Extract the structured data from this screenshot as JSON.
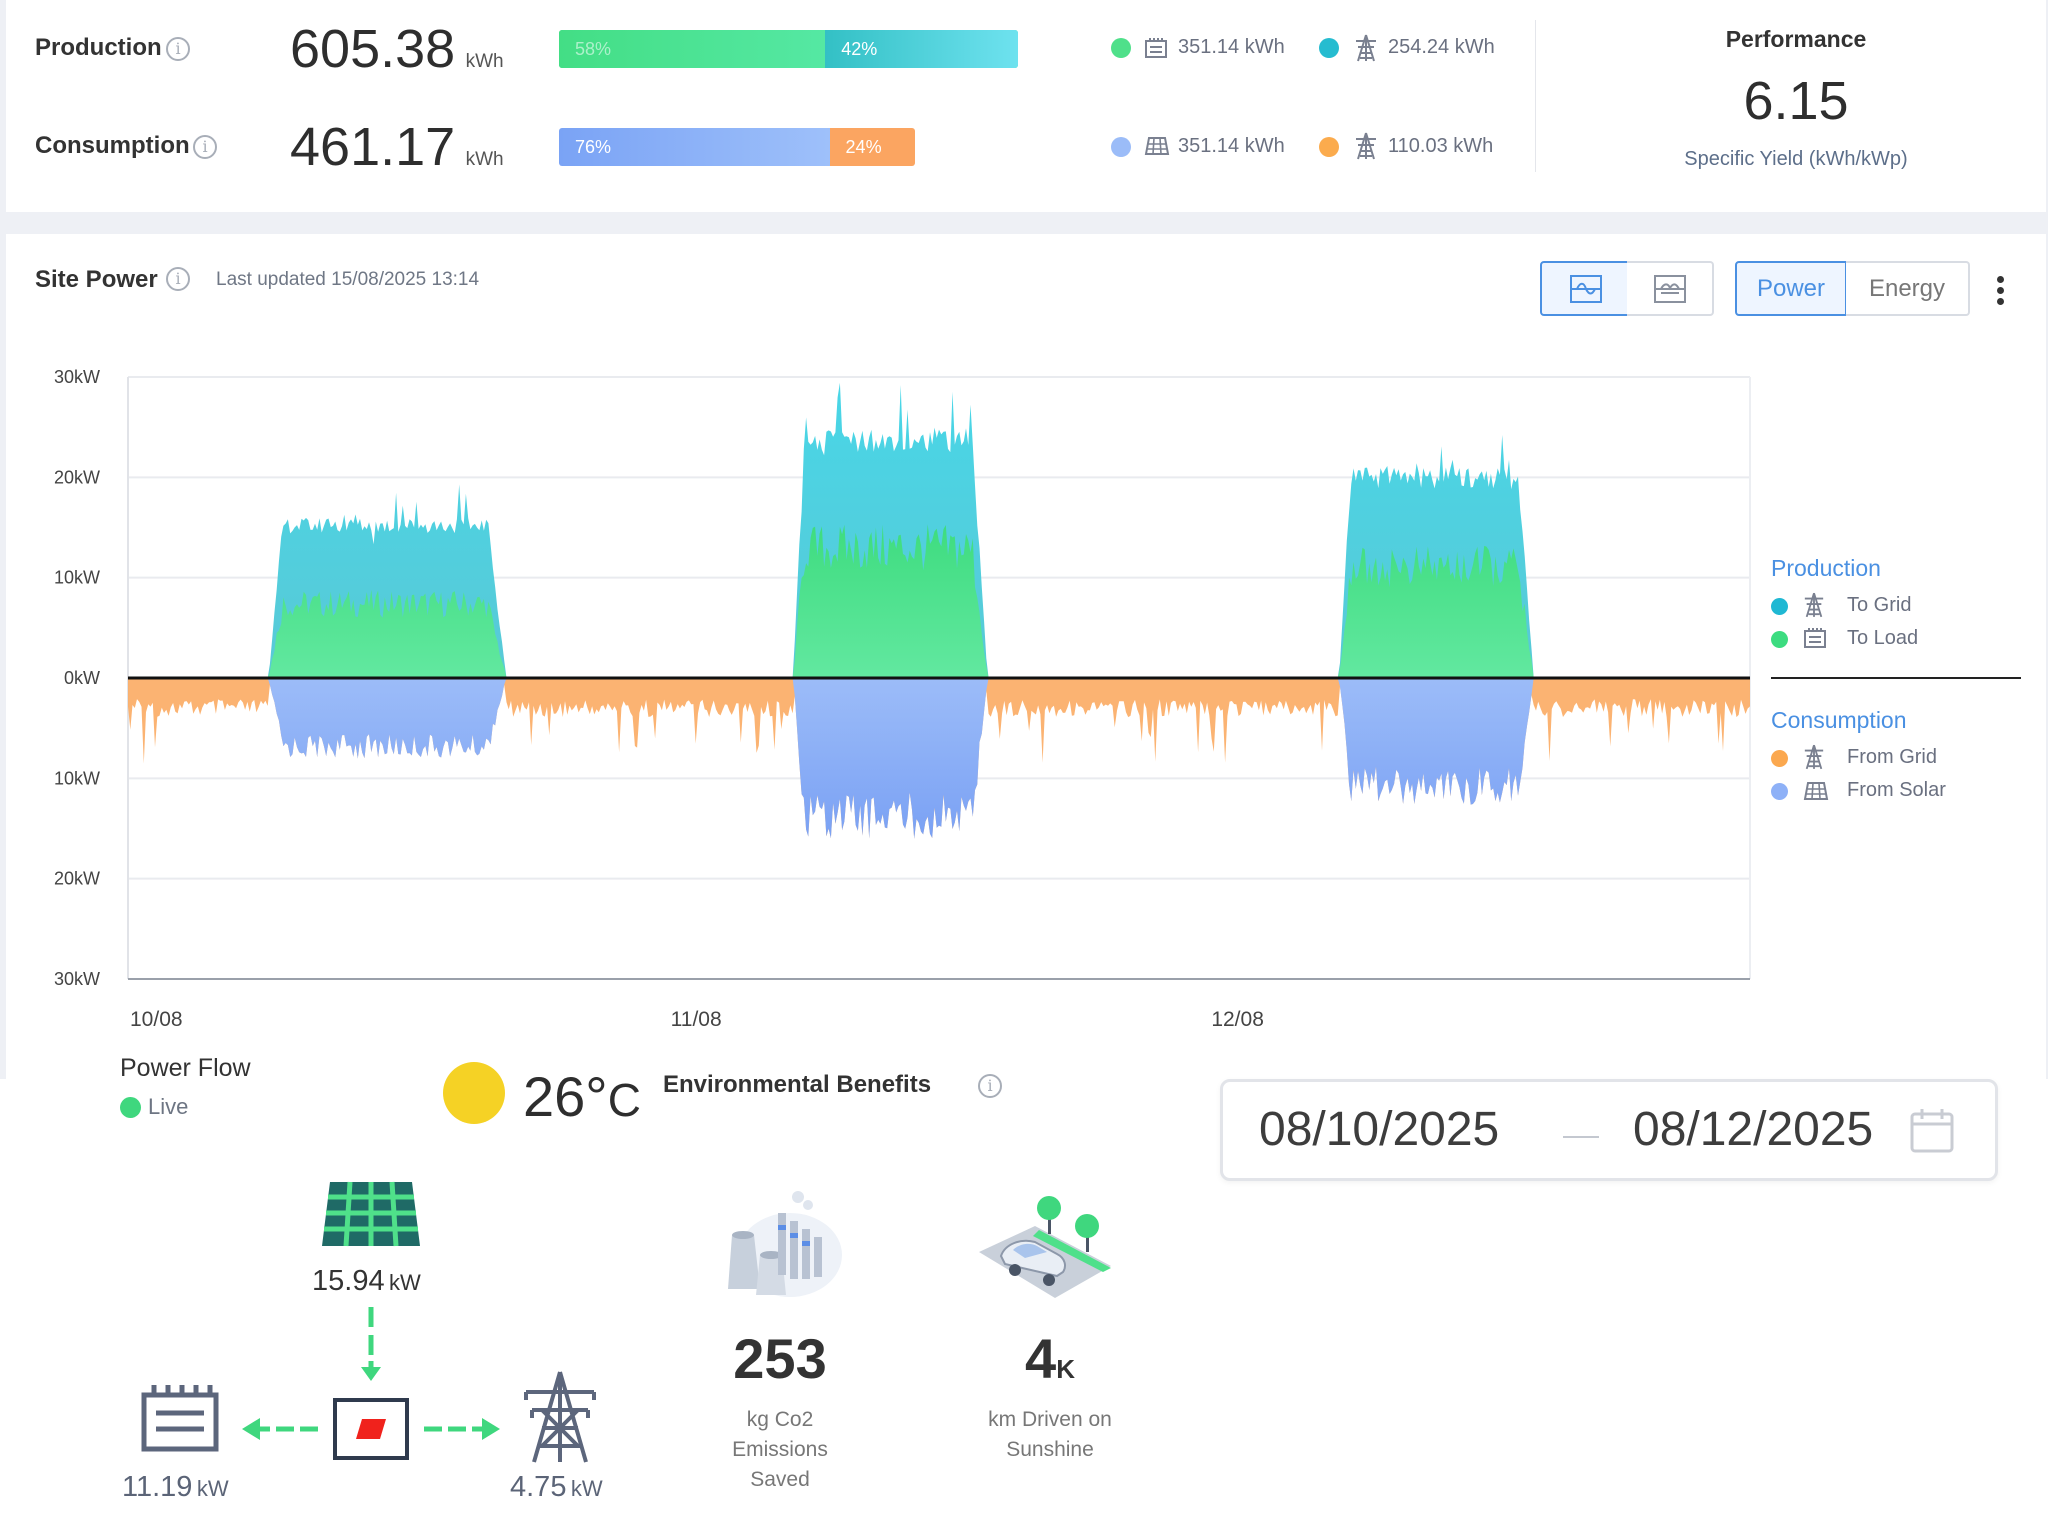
{
  "header": {
    "production": {
      "label": "Production",
      "value": "605.38",
      "unit": "kWh",
      "bar": [
        {
          "label": "58%",
          "value": 0.58
        },
        {
          "label": "42%",
          "value": 0.42
        }
      ],
      "to_load": "351.14 kWh",
      "to_grid": "254.24 kWh"
    },
    "consumption": {
      "label": "Consumption",
      "value": "461.17",
      "unit": "kWh",
      "bar": [
        {
          "label": "76%",
          "value": 0.76
        },
        {
          "label": "24%",
          "value": 0.24
        }
      ],
      "from_solar": "351.14 kWh",
      "from_grid": "110.03 kWh"
    },
    "performance": {
      "title": "Performance",
      "value": "6.15",
      "caption": "Specific Yield (kWh/kWp)"
    }
  },
  "site_power": {
    "title": "Site Power",
    "updated": "Last updated 15/08/2025 13:14",
    "toggle_power": "Power",
    "toggle_energy": "Energy",
    "active_toggle": "Power"
  },
  "chart_data": {
    "type": "area",
    "y_tick_labels": [
      "30kW",
      "20kW",
      "10kW",
      "0kW",
      "10kW",
      "20kW",
      "30kW"
    ],
    "ylim": [
      -30,
      30
    ],
    "x_tick_labels": [
      "10/08",
      "11/08",
      "12/08"
    ],
    "series": [
      {
        "group": "Production",
        "name": "To Grid",
        "color": "#3ccfe0"
      },
      {
        "group": "Production",
        "name": "To Load",
        "color": "#4fe08a"
      },
      {
        "group": "Consumption",
        "name": "From Grid",
        "color": "#fbab63"
      },
      {
        "group": "Consumption",
        "name": "From Solar",
        "color": "#86a9f6"
      }
    ],
    "days": [
      {
        "label": "10/08",
        "total_peak_kw": 16,
        "to_load_peak_kw": 8,
        "from_solar_peak_kw": 7,
        "from_grid_base_kw": 3
      },
      {
        "label": "11/08",
        "total_peak_kw": 25,
        "to_load_peak_kw": 14,
        "from_solar_peak_kw": 14,
        "from_grid_base_kw": 3
      },
      {
        "label": "12/08",
        "total_peak_kw": 21,
        "to_load_peak_kw": 12,
        "from_solar_peak_kw": 11,
        "from_grid_base_kw": 3
      }
    ]
  },
  "legend": {
    "production_title": "Production",
    "to_grid": "To Grid",
    "to_load": "To Load",
    "consumption_title": "Consumption",
    "from_grid": "From Grid",
    "from_solar": "From Solar"
  },
  "power_flow": {
    "title": "Power Flow",
    "status": "Live",
    "solar": "15.94",
    "load": "11.19",
    "grid": "4.75",
    "unit": "kW"
  },
  "weather": {
    "temp": "26°",
    "unit": "C"
  },
  "environmental": {
    "title": "Environmental Benefits",
    "co2_value": "253",
    "co2_line1": "kg Co2",
    "co2_line2": "Emissions",
    "co2_line3": "Saved",
    "km_value": "4",
    "km_suffix": "K",
    "km_line1": "km Driven on",
    "km_line2": "Sunshine"
  },
  "date_range": {
    "start": "08/10/2025",
    "end": "08/12/2025"
  },
  "colors": {
    "to_grid": "#3ccfe0",
    "to_load": "#4fe08a",
    "from_grid": "#fbab63",
    "from_solar": "#86a9f6",
    "accent": "#4a90e2",
    "flow_green": "#3fd77e",
    "sun": "#f5d225"
  }
}
